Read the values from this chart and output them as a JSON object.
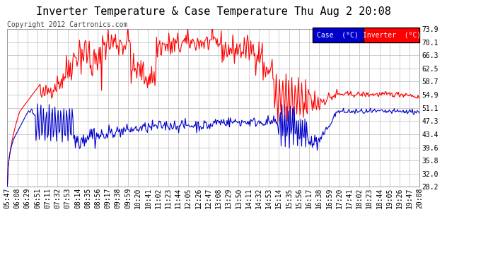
{
  "title": "Inverter Temperature & Case Temperature Thu Aug 2 20:08",
  "copyright": "Copyright 2012 Cartronics.com",
  "background_color": "#ffffff",
  "plot_bg_color": "#ffffff",
  "grid_color": "#bbbbbb",
  "y_ticks": [
    28.2,
    32.0,
    35.8,
    39.6,
    43.4,
    47.3,
    51.1,
    54.9,
    58.7,
    62.5,
    66.3,
    70.1,
    73.9
  ],
  "x_tick_labels": [
    "05:47",
    "06:08",
    "06:29",
    "06:51",
    "07:11",
    "07:32",
    "07:53",
    "08:14",
    "08:35",
    "08:56",
    "09:17",
    "09:38",
    "09:59",
    "10:20",
    "10:41",
    "11:02",
    "11:23",
    "11:44",
    "12:05",
    "12:26",
    "12:47",
    "13:08",
    "13:29",
    "13:50",
    "14:11",
    "14:32",
    "14:53",
    "15:14",
    "15:35",
    "15:56",
    "16:17",
    "16:38",
    "16:59",
    "17:20",
    "17:41",
    "18:02",
    "18:23",
    "18:44",
    "19:05",
    "19:26",
    "19:47",
    "20:08"
  ],
  "inverter_color": "#ff0000",
  "case_color": "#0000cc",
  "legend_case_bg": "#0000cc",
  "legend_inverter_bg": "#ff0000",
  "legend_text_color": "#ffffff",
  "title_fontsize": 11,
  "copyright_fontsize": 7,
  "tick_fontsize": 7,
  "ylim": [
    28.2,
    73.9
  ],
  "line_width": 0.8
}
